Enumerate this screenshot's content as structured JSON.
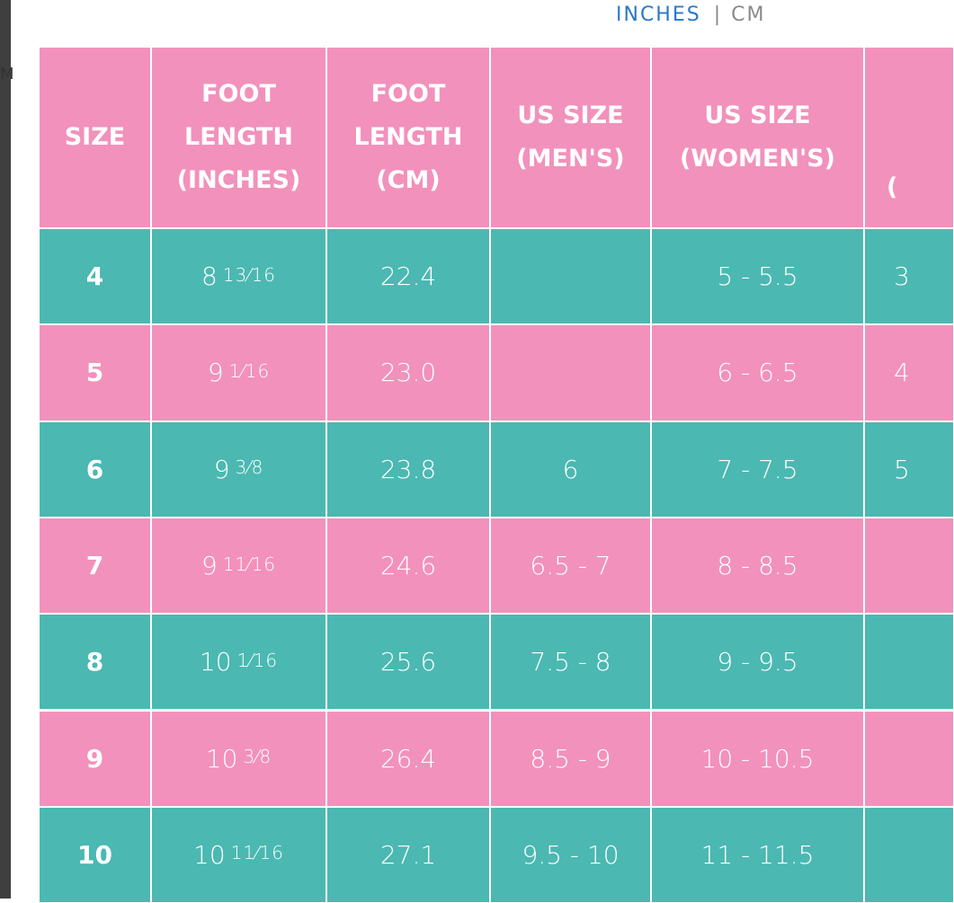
{
  "toggle": {
    "active": "INCHES",
    "divider": "|",
    "inactive": "CM"
  },
  "side_text": "M",
  "table": {
    "header": [
      [
        "SIZE"
      ],
      [
        "FOOT",
        "LENGTH",
        "(INCHES)"
      ],
      [
        "FOOT",
        "LENGTH",
        "(CM)"
      ],
      [
        "US SIZE",
        "(MEN'S)"
      ],
      [
        "US SIZE",
        "(WOMEN'S)"
      ],
      [
        "("
      ]
    ],
    "rows": [
      [
        "4",
        {
          "whole": "8",
          "fraction": "13⁄16"
        },
        "22.4",
        null,
        "5 - 5.5",
        "3"
      ],
      [
        "5",
        {
          "whole": "9",
          "fraction": "1⁄16"
        },
        "23.0",
        null,
        "6 - 6.5",
        "4"
      ],
      [
        "6",
        {
          "whole": "9",
          "fraction": "3⁄8"
        },
        "23.8",
        "6",
        "7 - 7.5",
        "5"
      ],
      [
        "7",
        {
          "whole": "9",
          "fraction": "11⁄16"
        },
        "24.6",
        "6.5 - 7",
        "8 - 8.5",
        null
      ],
      [
        "8",
        {
          "whole": "10",
          "fraction": "1⁄16"
        },
        "25.6",
        "7.5 - 8",
        "9 - 9.5",
        null
      ],
      [
        "9",
        {
          "whole": "10",
          "fraction": "3⁄8"
        },
        "26.4",
        "8.5 - 9",
        "10 - 10.5",
        null
      ],
      [
        "10",
        {
          "whole": "10",
          "fraction": "11⁄16"
        },
        "27.1",
        "9.5 - 10",
        "11 - 11.5",
        null
      ]
    ]
  }
}
